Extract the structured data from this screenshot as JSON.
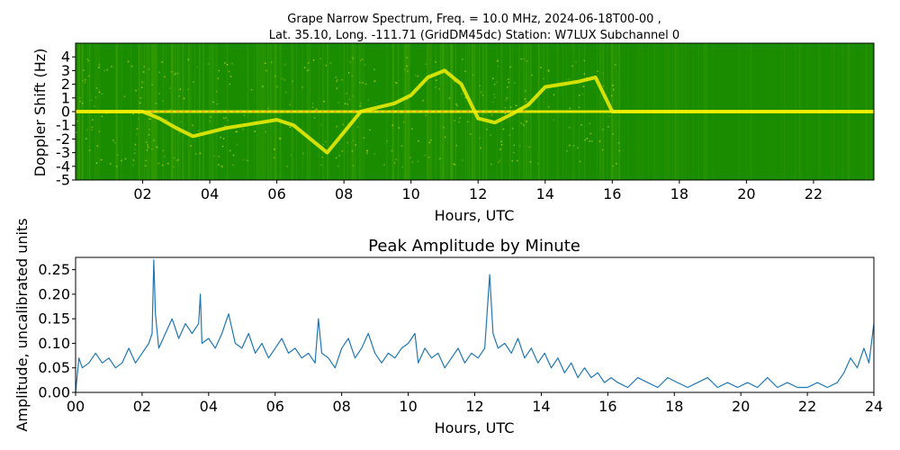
{
  "figure": {
    "title_line1": "Grape Narrow Spectrum, Freq. = 10.0 MHz, 2024-06-18T00-00 ,",
    "title_line2": "Lat.  35.10, Long. -111.71 (GridDM45dc) Station: W7LUX Subchannel 0"
  },
  "colors": {
    "spectrogram_background": "#1a8c00",
    "spectrogram_noise": "#3fa300",
    "spectrogram_signal": "#f5f000",
    "spectrogram_peak": "#ff8a2a",
    "amplitude_line": "#1f77b4"
  },
  "chart_data": [
    {
      "type": "heatmap",
      "xlabel": "Hours, UTC",
      "ylabel": "Doppler Shift (Hz)",
      "xlim": [
        0,
        23.8
      ],
      "ylim": [
        -5,
        5
      ],
      "x_ticks": [
        2,
        4,
        6,
        8,
        10,
        12,
        14,
        16,
        18,
        20,
        22
      ],
      "x_tick_labels": [
        "02",
        "04",
        "06",
        "08",
        "10",
        "12",
        "14",
        "16",
        "18",
        "20",
        "22"
      ],
      "y_ticks": [
        4,
        3,
        2,
        1,
        0,
        -1,
        -2,
        -3,
        -4,
        -5
      ],
      "y_tick_labels": [
        "4",
        "3",
        "2",
        "1",
        "0",
        "-1",
        "-2",
        "-3",
        "-4",
        "-5"
      ],
      "carrier_trace": {
        "hours": [
          0,
          1,
          2,
          2.5,
          3,
          3.5,
          4,
          4.5,
          5,
          5.5,
          6,
          6.5,
          7,
          7.5,
          8,
          8.5,
          9,
          9.5,
          10,
          10.5,
          11,
          11.5,
          12,
          12.5,
          13,
          13.5,
          14,
          14.5,
          15,
          15.5,
          16,
          17,
          18,
          19,
          20,
          21,
          22,
          23,
          23.8
        ],
        "doppler_hz": [
          0,
          0,
          0,
          -0.5,
          -1.2,
          -1.8,
          -1.5,
          -1.2,
          -1.0,
          -0.8,
          -0.6,
          -1.0,
          -2.0,
          -3.0,
          -1.5,
          0.0,
          0.3,
          0.6,
          1.2,
          2.5,
          3.0,
          2.0,
          -0.5,
          -0.8,
          -0.2,
          0.5,
          1.8,
          2.0,
          2.2,
          2.5,
          0.0,
          0.0,
          0.0,
          0.0,
          0.0,
          0.0,
          0.0,
          0.0,
          0.0
        ]
      }
    },
    {
      "type": "line",
      "title": "Peak Amplitude by Minute",
      "xlabel": "Hours, UTC",
      "ylabel": "Amplitude, uncalibrated units",
      "xlim": [
        0,
        24
      ],
      "ylim": [
        0,
        0.275
      ],
      "x_ticks": [
        0,
        2,
        4,
        6,
        8,
        10,
        12,
        14,
        16,
        18,
        20,
        22,
        24
      ],
      "x_tick_labels": [
        "00",
        "02",
        "04",
        "06",
        "08",
        "10",
        "12",
        "14",
        "16",
        "18",
        "20",
        "22",
        "24"
      ],
      "y_ticks": [
        0,
        0.05,
        0.1,
        0.15,
        0.2,
        0.25
      ],
      "y_tick_labels": [
        "0.00",
        "0.05",
        "0.10",
        "0.15",
        "0.20",
        "0.25"
      ],
      "series": [
        {
          "x": [
            0,
            0.1,
            0.2,
            0.4,
            0.6,
            0.8,
            1.0,
            1.2,
            1.4,
            1.6,
            1.8,
            2.0,
            2.2,
            2.3,
            2.35,
            2.4,
            2.5,
            2.7,
            2.9,
            3.1,
            3.3,
            3.5,
            3.7,
            3.75,
            3.8,
            4.0,
            4.2,
            4.4,
            4.6,
            4.8,
            5.0,
            5.2,
            5.4,
            5.6,
            5.8,
            6.0,
            6.2,
            6.4,
            6.6,
            6.8,
            7.0,
            7.2,
            7.3,
            7.4,
            7.6,
            7.8,
            8.0,
            8.2,
            8.4,
            8.6,
            8.8,
            9.0,
            9.2,
            9.4,
            9.6,
            9.8,
            10.0,
            10.2,
            10.3,
            10.5,
            10.7,
            10.9,
            11.1,
            11.3,
            11.5,
            11.7,
            11.9,
            12.1,
            12.3,
            12.45,
            12.55,
            12.7,
            12.9,
            13.1,
            13.3,
            13.5,
            13.7,
            13.9,
            14.1,
            14.3,
            14.5,
            14.7,
            14.9,
            15.1,
            15.3,
            15.5,
            15.7,
            15.9,
            16.1,
            16.3,
            16.6,
            16.9,
            17.2,
            17.5,
            17.8,
            18.1,
            18.4,
            18.7,
            19.0,
            19.3,
            19.6,
            19.9,
            20.2,
            20.5,
            20.8,
            21.1,
            21.4,
            21.7,
            22.0,
            22.3,
            22.6,
            22.9,
            23.1,
            23.3,
            23.5,
            23.7,
            23.85,
            24.0
          ],
          "y": [
            0.0,
            0.07,
            0.05,
            0.06,
            0.08,
            0.06,
            0.07,
            0.05,
            0.06,
            0.09,
            0.06,
            0.08,
            0.1,
            0.12,
            0.27,
            0.16,
            0.09,
            0.12,
            0.15,
            0.11,
            0.14,
            0.12,
            0.14,
            0.2,
            0.1,
            0.11,
            0.09,
            0.12,
            0.16,
            0.1,
            0.09,
            0.12,
            0.08,
            0.1,
            0.07,
            0.09,
            0.11,
            0.08,
            0.09,
            0.07,
            0.08,
            0.06,
            0.15,
            0.08,
            0.07,
            0.05,
            0.09,
            0.11,
            0.07,
            0.09,
            0.12,
            0.08,
            0.06,
            0.08,
            0.07,
            0.09,
            0.1,
            0.12,
            0.06,
            0.09,
            0.07,
            0.08,
            0.05,
            0.07,
            0.09,
            0.06,
            0.08,
            0.07,
            0.09,
            0.24,
            0.12,
            0.09,
            0.1,
            0.08,
            0.11,
            0.07,
            0.09,
            0.06,
            0.08,
            0.05,
            0.07,
            0.04,
            0.06,
            0.03,
            0.05,
            0.03,
            0.04,
            0.02,
            0.03,
            0.02,
            0.01,
            0.03,
            0.02,
            0.01,
            0.03,
            0.02,
            0.01,
            0.02,
            0.03,
            0.01,
            0.02,
            0.01,
            0.02,
            0.01,
            0.03,
            0.01,
            0.02,
            0.01,
            0.01,
            0.02,
            0.01,
            0.02,
            0.04,
            0.07,
            0.05,
            0.09,
            0.06,
            0.14
          ]
        }
      ]
    }
  ]
}
